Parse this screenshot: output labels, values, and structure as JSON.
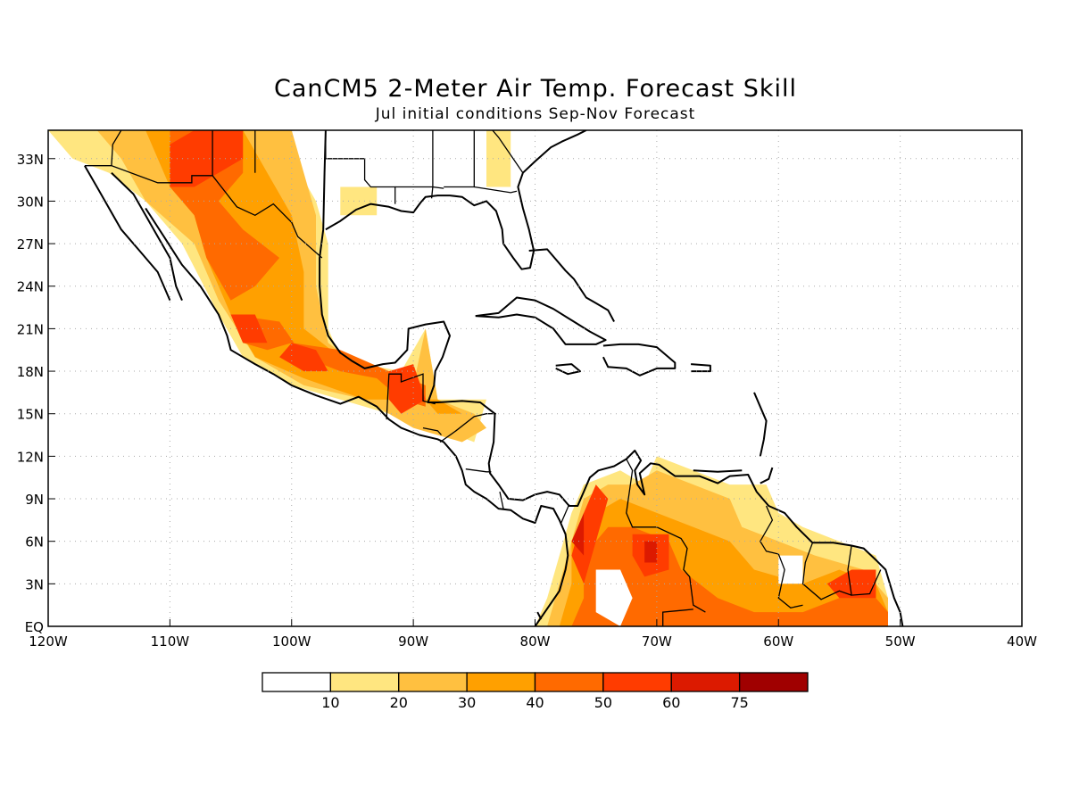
{
  "title": "CanCM5 2-Meter Air Temp. Forecast Skill",
  "subtitle": "Jul initial conditions  Sep-Nov Forecast",
  "map": {
    "lon_range": [
      -120,
      -40
    ],
    "lat_range": [
      0,
      35
    ],
    "lon_ticks": [
      {
        "lon": -120,
        "label": "120W"
      },
      {
        "lon": -110,
        "label": "110W"
      },
      {
        "lon": -100,
        "label": "100W"
      },
      {
        "lon": -90,
        "label": "90W"
      },
      {
        "lon": -80,
        "label": "80W"
      },
      {
        "lon": -70,
        "label": "70W"
      },
      {
        "lon": -60,
        "label": "60W"
      },
      {
        "lon": -50,
        "label": "50W"
      },
      {
        "lon": -40,
        "label": "40W"
      }
    ],
    "lat_ticks": [
      {
        "lat": 0,
        "label": "EQ"
      },
      {
        "lat": 3,
        "label": "3N"
      },
      {
        "lat": 6,
        "label": "6N"
      },
      {
        "lat": 9,
        "label": "9N"
      },
      {
        "lat": 12,
        "label": "12N"
      },
      {
        "lat": 15,
        "label": "15N"
      },
      {
        "lat": 18,
        "label": "18N"
      },
      {
        "lat": 21,
        "label": "21N"
      },
      {
        "lat": 24,
        "label": "24N"
      },
      {
        "lat": 27,
        "label": "27N"
      },
      {
        "lat": 30,
        "label": "30N"
      },
      {
        "lat": 33,
        "label": "33N"
      }
    ],
    "gridlines": "dotted"
  },
  "colorbar": {
    "colors": [
      "#ffffff",
      "#ffe680",
      "#ffc040",
      "#ffa000",
      "#ff6a00",
      "#ff3c00",
      "#dc1a00",
      "#a00000"
    ],
    "labels": [
      "10",
      "20",
      "30",
      "40",
      "50",
      "60",
      "75"
    ]
  },
  "skill_regions": [
    {
      "level": 1,
      "points": [
        [
          -120,
          35
        ],
        [
          -113,
          35
        ],
        [
          -110,
          34
        ],
        [
          -104,
          35
        ],
        [
          -100,
          33
        ],
        [
          -98,
          30
        ],
        [
          -97,
          27
        ],
        [
          -97,
          24
        ],
        [
          -97,
          21
        ],
        [
          -96,
          19
        ],
        [
          -94,
          18.5
        ],
        [
          -91,
          18
        ],
        [
          -89,
          21
        ],
        [
          -88,
          16
        ],
        [
          -84,
          16
        ],
        [
          -85,
          13
        ],
        [
          -88,
          14
        ],
        [
          -92,
          15
        ],
        [
          -96,
          16
        ],
        [
          -100,
          17
        ],
        [
          -104,
          19
        ],
        [
          -106,
          22
        ],
        [
          -109,
          27
        ],
        [
          -112,
          30
        ],
        [
          -115,
          32
        ],
        [
          -118,
          33
        ]
      ]
    },
    {
      "level": 1,
      "points": [
        [
          -96,
          31
        ],
        [
          -93,
          31
        ],
        [
          -93,
          29
        ],
        [
          -96,
          29
        ]
      ]
    },
    {
      "level": 1,
      "points": [
        [
          -84,
          35
        ],
        [
          -82,
          35
        ],
        [
          -82,
          31
        ],
        [
          -84,
          31
        ]
      ]
    },
    {
      "level": 2,
      "points": [
        [
          -116,
          35
        ],
        [
          -100,
          35
        ],
        [
          -99,
          32
        ],
        [
          -98,
          29
        ],
        [
          -98,
          24
        ],
        [
          -97,
          20
        ],
        [
          -94,
          18
        ],
        [
          -90,
          17
        ],
        [
          -89,
          21
        ],
        [
          -88,
          16
        ],
        [
          -85,
          15
        ],
        [
          -84,
          14
        ],
        [
          -86,
          13
        ],
        [
          -90,
          14
        ],
        [
          -94,
          16
        ],
        [
          -99,
          17
        ],
        [
          -103,
          19
        ],
        [
          -106,
          23
        ],
        [
          -108,
          27
        ],
        [
          -112,
          30
        ],
        [
          -114,
          33
        ]
      ]
    },
    {
      "level": 3,
      "points": [
        [
          -112,
          35
        ],
        [
          -104,
          35
        ],
        [
          -102,
          32
        ],
        [
          -100,
          29
        ],
        [
          -99,
          25
        ],
        [
          -99,
          21
        ],
        [
          -96,
          19
        ],
        [
          -92,
          17.5
        ],
        [
          -90,
          17
        ],
        [
          -88,
          15
        ],
        [
          -86,
          15
        ],
        [
          -88,
          16
        ],
        [
          -90,
          16
        ],
        [
          -94,
          16
        ],
        [
          -99,
          17.5
        ],
        [
          -103,
          19
        ],
        [
          -105,
          22
        ],
        [
          -107,
          26
        ],
        [
          -108,
          29
        ],
        [
          -110,
          31
        ]
      ]
    },
    {
      "level": 4,
      "points": [
        [
          -110,
          35
        ],
        [
          -104,
          35
        ],
        [
          -104,
          32
        ],
        [
          -106,
          30
        ],
        [
          -104,
          28
        ],
        [
          -101,
          26
        ],
        [
          -103,
          24
        ],
        [
          -105,
          23
        ],
        [
          -107,
          26
        ],
        [
          -108,
          29
        ],
        [
          -110,
          31
        ]
      ]
    },
    {
      "level": 4,
      "points": [
        [
          -105,
          22
        ],
        [
          -101,
          21.5
        ],
        [
          -99,
          19
        ],
        [
          -96,
          18
        ],
        [
          -93,
          17.5
        ],
        [
          -91,
          16
        ],
        [
          -89,
          15.5
        ],
        [
          -89,
          17
        ],
        [
          -92,
          18
        ],
        [
          -96,
          19.5
        ],
        [
          -100,
          20
        ],
        [
          -102,
          19.5
        ],
        [
          -104,
          20
        ]
      ]
    },
    {
      "level": 5,
      "points": [
        [
          -110,
          34
        ],
        [
          -108,
          35
        ],
        [
          -104,
          35
        ],
        [
          -104,
          33
        ],
        [
          -106,
          32
        ],
        [
          -108,
          31
        ],
        [
          -110,
          31
        ]
      ]
    },
    {
      "level": 5,
      "points": [
        [
          -105,
          22
        ],
        [
          -103,
          22
        ],
        [
          -102,
          20
        ],
        [
          -104,
          20
        ]
      ]
    },
    {
      "level": 5,
      "points": [
        [
          -100,
          20
        ],
        [
          -98,
          19.5
        ],
        [
          -97,
          18
        ],
        [
          -99,
          18
        ],
        [
          -101,
          19
        ]
      ]
    },
    {
      "level": 5,
      "points": [
        [
          -92,
          18
        ],
        [
          -90,
          18.5
        ],
        [
          -89,
          16
        ],
        [
          -91,
          15
        ],
        [
          -92,
          16
        ]
      ]
    },
    {
      "level": 1,
      "points": [
        [
          -80,
          0
        ],
        [
          -79,
          2
        ],
        [
          -78,
          5
        ],
        [
          -77,
          8
        ],
        [
          -76,
          10
        ],
        [
          -73,
          11
        ],
        [
          -71,
          10
        ],
        [
          -70,
          12
        ],
        [
          -67,
          11
        ],
        [
          -64,
          10
        ],
        [
          -61,
          10
        ],
        [
          -60,
          8
        ],
        [
          -58,
          7
        ],
        [
          -55,
          6
        ],
        [
          -52,
          5
        ],
        [
          -51,
          2
        ],
        [
          -51,
          0
        ]
      ]
    },
    {
      "level": 2,
      "points": [
        [
          -79,
          0
        ],
        [
          -78,
          3
        ],
        [
          -77,
          6
        ],
        [
          -76,
          9
        ],
        [
          -74,
          10
        ],
        [
          -72,
          10
        ],
        [
          -70,
          11
        ],
        [
          -67,
          10
        ],
        [
          -64,
          9
        ],
        [
          -63,
          7
        ],
        [
          -60,
          6
        ],
        [
          -57,
          5
        ],
        [
          -53,
          4
        ],
        [
          -51,
          2
        ],
        [
          -51,
          0
        ]
      ]
    },
    {
      "level": 3,
      "points": [
        [
          -78,
          0
        ],
        [
          -77,
          3
        ],
        [
          -77,
          6
        ],
        [
          -75,
          8
        ],
        [
          -73,
          9
        ],
        [
          -70,
          8
        ],
        [
          -67,
          7
        ],
        [
          -64,
          6
        ],
        [
          -62,
          4
        ],
        [
          -58,
          3
        ],
        [
          -55,
          4
        ],
        [
          -52,
          3
        ],
        [
          -51,
          1
        ],
        [
          -51,
          0
        ]
      ]
    },
    {
      "level": 4,
      "points": [
        [
          -77,
          0
        ],
        [
          -76,
          2
        ],
        [
          -76,
          5
        ],
        [
          -74,
          7
        ],
        [
          -72,
          7
        ],
        [
          -69,
          6
        ],
        [
          -68,
          4
        ],
        [
          -65,
          2
        ],
        [
          -62,
          1
        ],
        [
          -58,
          1
        ],
        [
          -55,
          2
        ],
        [
          -53,
          3
        ],
        [
          -51,
          1
        ],
        [
          -51,
          0
        ]
      ]
    },
    {
      "level": 5,
      "points": [
        [
          -77,
          5
        ],
        [
          -76,
          8
        ],
        [
          -75,
          10
        ],
        [
          -74,
          9
        ],
        [
          -75,
          6
        ],
        [
          -76,
          3
        ]
      ]
    },
    {
      "level": 5,
      "points": [
        [
          -72,
          6.5
        ],
        [
          -69,
          6.5
        ],
        [
          -69,
          4
        ],
        [
          -71,
          3.5
        ],
        [
          -72,
          5
        ]
      ]
    },
    {
      "level": 5,
      "points": [
        [
          -56,
          3
        ],
        [
          -54,
          4
        ],
        [
          -52,
          4
        ],
        [
          -52,
          2
        ],
        [
          -55,
          2
        ]
      ]
    },
    {
      "level": 6,
      "points": [
        [
          -77,
          6
        ],
        [
          -76,
          8
        ],
        [
          -76,
          5
        ]
      ]
    },
    {
      "level": 6,
      "points": [
        [
          -71,
          6
        ],
        [
          -70,
          6
        ],
        [
          -70,
          4.5
        ],
        [
          -71,
          4.5
        ]
      ]
    }
  ],
  "holes": [
    {
      "points": [
        [
          -75,
          4
        ],
        [
          -73,
          4
        ],
        [
          -72,
          2
        ],
        [
          -73,
          0
        ],
        [
          -75,
          1
        ]
      ]
    },
    {
      "points": [
        [
          -60,
          5
        ],
        [
          -58,
          5
        ],
        [
          -58,
          3
        ],
        [
          -60,
          3
        ]
      ]
    }
  ]
}
